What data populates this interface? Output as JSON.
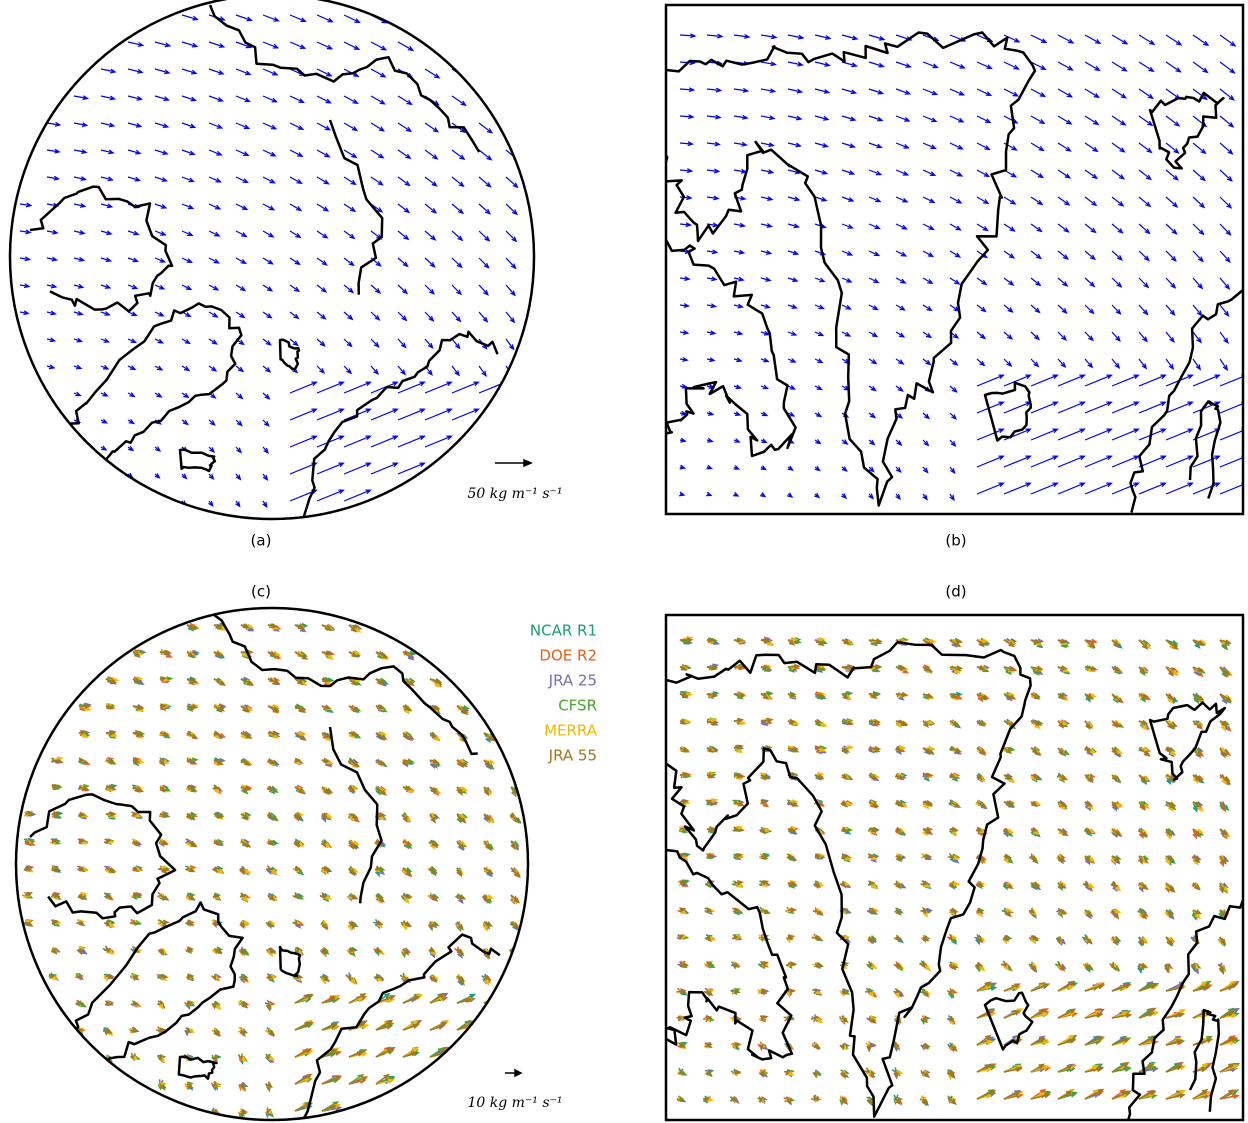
{
  "panels": [
    {
      "label": "(a)",
      "scale_label": "50 kg m⁻¹ s⁻¹",
      "arrow_color": "#0000ff"
    },
    {
      "label": "(b)",
      "arrow_color": "#0000ff"
    },
    {
      "label": "(c)",
      "scale_label": "10 kg m⁻¹ s⁻¹",
      "legend": [
        {
          "name": "NCAR R1",
          "color": "#1b9e77"
        },
        {
          "name": "DOE R2",
          "color": "#e8601c"
        },
        {
          "name": "JRA 25",
          "color": "#7570b3"
        },
        {
          "name": "CFSR",
          "color": "#4aa52e"
        },
        {
          "name": "MERRA",
          "color": "#f5b700"
        },
        {
          "name": "JRA 55",
          "color": "#a6761d"
        }
      ]
    },
    {
      "label": "(d)"
    }
  ]
}
